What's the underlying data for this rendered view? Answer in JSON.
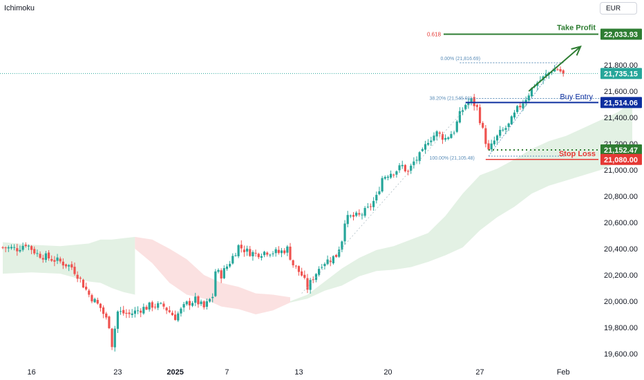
{
  "indicator": "Ichimoku",
  "currency": "EUR",
  "colors": {
    "up": "#26a69a",
    "down": "#ef5350",
    "take_profit": "#2e7d32",
    "entry": "#0d2f9f",
    "stop_loss": "#e53935",
    "stop_tag": "#2e7d32",
    "last_price": "#26a69a",
    "fib": "#5b8db8",
    "cloud_bull": "#e3f1e4",
    "cloud_bear": "#fbe1e1"
  },
  "chart_data": {
    "type": "candlestick",
    "title": "",
    "ylim": [
      19540,
      22160
    ],
    "y_ticks": [
      "19,600.00",
      "19,800.00",
      "20,000.00",
      "20,200.00",
      "20,400.00",
      "20,600.00",
      "20,800.00",
      "21,000.00",
      "21,200.00",
      "21,400.00",
      "21,600.00",
      "21,800.00"
    ],
    "x_ticks": [
      {
        "label": "16",
        "index": 10
      },
      {
        "label": "23",
        "index": 40
      },
      {
        "label": "2025",
        "index": 60,
        "bold": true
      },
      {
        "label": "7",
        "index": 78
      },
      {
        "label": "13",
        "index": 103
      },
      {
        "label": "20",
        "index": 134
      },
      {
        "label": "27",
        "index": 166
      },
      {
        "label": "Feb",
        "index": 195
      }
    ],
    "x_domain": [
      0,
      228
    ],
    "path_points": [
      [
        0,
        20410
      ],
      [
        5,
        20400
      ],
      [
        8,
        20440
      ],
      [
        12,
        20360
      ],
      [
        16,
        20330
      ],
      [
        20,
        20300
      ],
      [
        24,
        20260
      ],
      [
        26,
        20200
      ],
      [
        30,
        20050
      ],
      [
        34,
        19950
      ],
      [
        37,
        19820
      ],
      [
        38,
        19670
      ],
      [
        40,
        19920
      ],
      [
        44,
        19900
      ],
      [
        48,
        19940
      ],
      [
        52,
        19970
      ],
      [
        56,
        19960
      ],
      [
        60,
        19880
      ],
      [
        64,
        19980
      ],
      [
        67,
        20010
      ],
      [
        70,
        19950
      ],
      [
        73,
        20040
      ],
      [
        74,
        20230
      ],
      [
        76,
        20200
      ],
      [
        79,
        20300
      ],
      [
        82,
        20420
      ],
      [
        85,
        20380
      ],
      [
        88,
        20360
      ],
      [
        92,
        20380
      ],
      [
        96,
        20370
      ],
      [
        99,
        20400
      ],
      [
        101,
        20280
      ],
      [
        104,
        20200
      ],
      [
        106,
        20100
      ],
      [
        108,
        20180
      ],
      [
        111,
        20290
      ],
      [
        114,
        20320
      ],
      [
        116,
        20350
      ],
      [
        118,
        20470
      ],
      [
        119,
        20620
      ],
      [
        121,
        20640
      ],
      [
        124,
        20650
      ],
      [
        127,
        20700
      ],
      [
        130,
        20790
      ],
      [
        132,
        20940
      ],
      [
        134,
        20970
      ],
      [
        137,
        21000
      ],
      [
        139,
        21030
      ],
      [
        141,
        20980
      ],
      [
        143,
        21060
      ],
      [
        146,
        21130
      ],
      [
        148,
        21230
      ],
      [
        151,
        21280
      ],
      [
        154,
        21240
      ],
      [
        157,
        21300
      ],
      [
        159,
        21420
      ],
      [
        161,
        21500
      ],
      [
        163,
        21530
      ],
      [
        165,
        21470
      ],
      [
        167,
        21300
      ],
      [
        169,
        21140
      ],
      [
        171,
        21220
      ],
      [
        173,
        21280
      ],
      [
        176,
        21340
      ],
      [
        179,
        21460
      ],
      [
        182,
        21550
      ],
      [
        185,
        21650
      ],
      [
        188,
        21700
      ],
      [
        191,
        21760
      ],
      [
        193,
        21770
      ],
      [
        195,
        21735
      ]
    ],
    "cloud_bull": [
      {
        "x": [
          0,
          10,
          20,
          30,
          34,
          38,
          42,
          46
        ],
        "upper": [
          20450,
          20430,
          20420,
          20440,
          20470,
          20470,
          20480,
          20490
        ],
        "lower": [
          20210,
          20220,
          20210,
          20150,
          20140,
          20100,
          20070,
          20050
        ]
      },
      {
        "x": [
          100,
          106,
          112,
          118,
          124,
          130,
          136,
          142,
          148,
          154,
          160,
          166,
          172,
          178,
          184,
          190,
          196,
          202,
          208,
          214,
          219
        ],
        "upper": [
          20000,
          20050,
          20150,
          20250,
          20330,
          20390,
          20420,
          20470,
          20520,
          20650,
          20820,
          20960,
          21010,
          21080,
          21160,
          21220,
          21260,
          21320,
          21380,
          21440,
          21520
        ],
        "lower": [
          19990,
          20020,
          20080,
          20120,
          20190,
          20230,
          20240,
          20260,
          20300,
          20350,
          20410,
          20540,
          20640,
          20720,
          20820,
          20880,
          20920,
          20960,
          21000,
          21060,
          21120
        ]
      }
    ],
    "cloud_bear": [
      {
        "x": [
          46,
          52,
          58,
          64,
          70,
          76,
          82,
          88,
          94,
          100
        ],
        "upper": [
          20490,
          20470,
          20400,
          20320,
          20200,
          20140,
          20110,
          20060,
          20050,
          20030
        ],
        "lower": [
          20400,
          20290,
          20140,
          20050,
          20020,
          19960,
          19940,
          19900,
          19930,
          19990
        ]
      }
    ],
    "price_lines": {
      "take_profit": 22033.93,
      "last_price": 21735.15,
      "buy_entry": 21514.06,
      "stop_loss": 21080.0,
      "stop_tag": 21152.47
    },
    "price_tags": {
      "take_profit": "22,033.93",
      "last_price": "21,735.15",
      "buy_entry": "21,514.06",
      "stop_tag": "21,152.47",
      "stop_loss": "21,080.00"
    },
    "annotations": {
      "take_profit_label": "Take Profit",
      "buy_entry_label": "Buy Entry",
      "stop_loss_label": "Stop Loss",
      "fib_0618": "0.618",
      "fib_0": "0.00% (21,816.69)",
      "fib_382": "38.20% (21,545.01)",
      "fib_100": "100.00% (21,105.48)"
    },
    "fib_levels": {
      "level_0": 21816.69,
      "level_382": 21545.01,
      "level_100": 21105.48,
      "start_index": 159,
      "end_index": 193,
      "low_index": 169
    },
    "trade_arrow": {
      "from_index": 183,
      "from_value": 21600,
      "to_index": 201,
      "to_value": 21940
    }
  }
}
